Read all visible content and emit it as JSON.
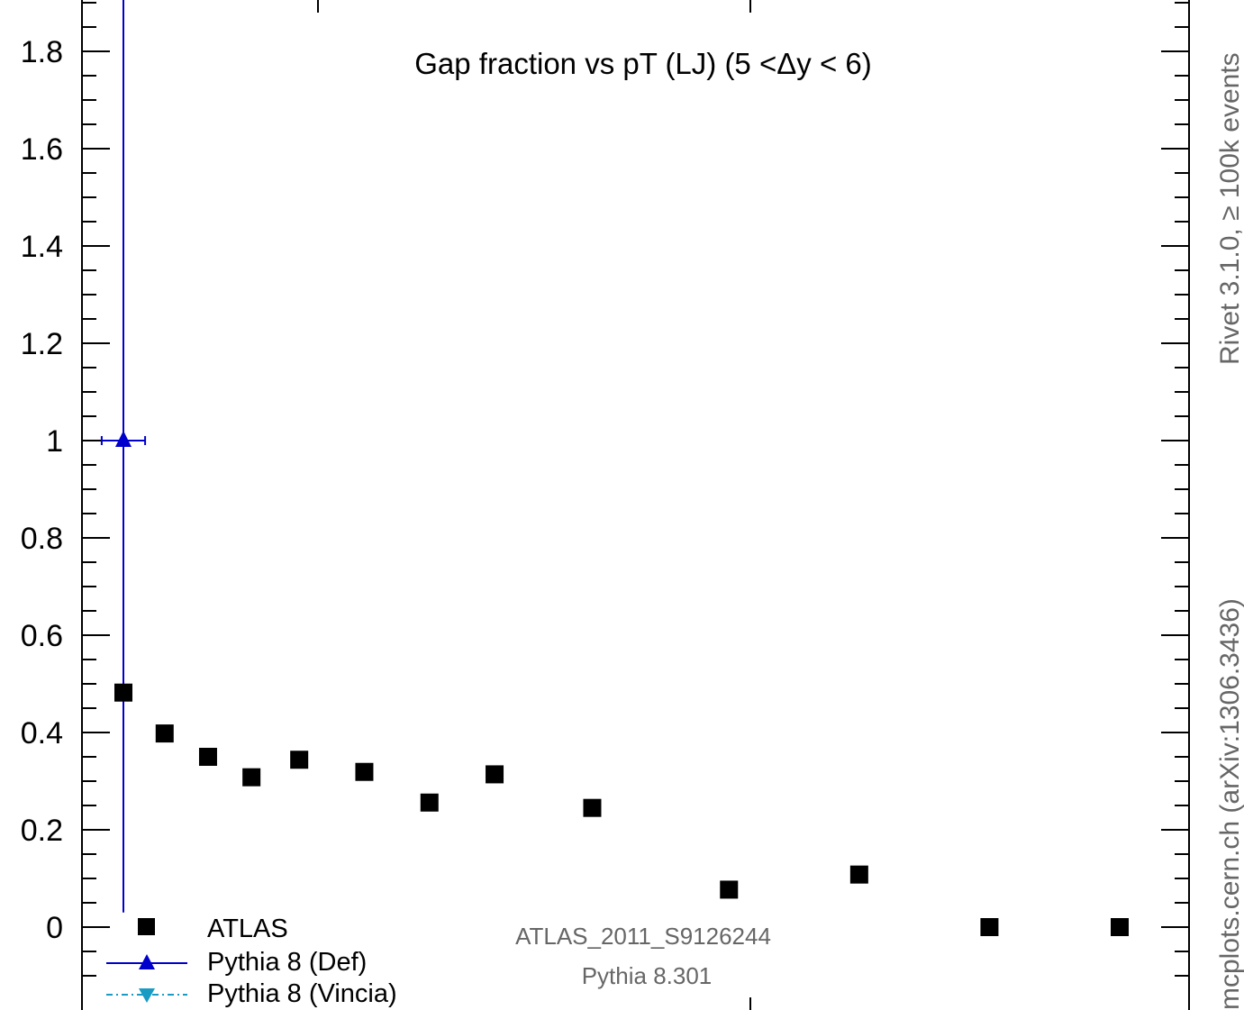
{
  "chart_data": {
    "type": "scatter",
    "title": "Gap fraction vs pT (LJ) (5 <Δy < 6)",
    "xlabel": "",
    "ylabel": "",
    "ylim": [
      -0.12,
      1.96
    ],
    "xlim": [
      65,
      570
    ],
    "grid": false,
    "legend_placement": "bottom-left",
    "y_ticks": [
      {
        "value": 0,
        "label": "0"
      },
      {
        "value": 0.2,
        "label": "0.2"
      },
      {
        "value": 0.4,
        "label": "0.4"
      },
      {
        "value": 0.6,
        "label": "0.6"
      },
      {
        "value": 0.8,
        "label": "0.8"
      },
      {
        "value": 1.0,
        "label": "1"
      },
      {
        "value": 1.2,
        "label": "1.2"
      },
      {
        "value": 1.4,
        "label": "1.4"
      },
      {
        "value": 1.6,
        "label": "1.6"
      },
      {
        "value": 1.8,
        "label": "1.8"
      }
    ],
    "series": [
      {
        "name": "ATLAS",
        "color": "#000000",
        "marker": "square",
        "x": [
          84,
          103,
          123,
          143,
          165,
          195,
          225,
          255,
          300,
          363,
          423,
          483,
          543
        ],
        "y": [
          0.482,
          0.398,
          0.35,
          0.308,
          0.344,
          0.319,
          0.256,
          0.314,
          0.245,
          0.077,
          0.108,
          0.0,
          0.0
        ]
      },
      {
        "name": "Pythia 8 (Def)",
        "color": "#0000cc",
        "marker": "triangle-up",
        "x": [
          84
        ],
        "y": [
          1.0
        ],
        "xerr": [
          [
            74,
            94
          ]
        ],
        "yerr": [
          [
            0.03,
            2.1
          ]
        ]
      },
      {
        "name": "Pythia 8 (Vincia)",
        "color": "#1a9bc4",
        "marker": "triangle-down",
        "x": [],
        "y": []
      }
    ],
    "annotations": {
      "analysis": "ATLAS_2011_S9126244",
      "generator": "Pythia 8.301",
      "side_top": "Rivet 3.1.0, ≥ 100k events",
      "side_bottom": "mcplots.cern.ch (arXiv:1306.3436)"
    }
  }
}
